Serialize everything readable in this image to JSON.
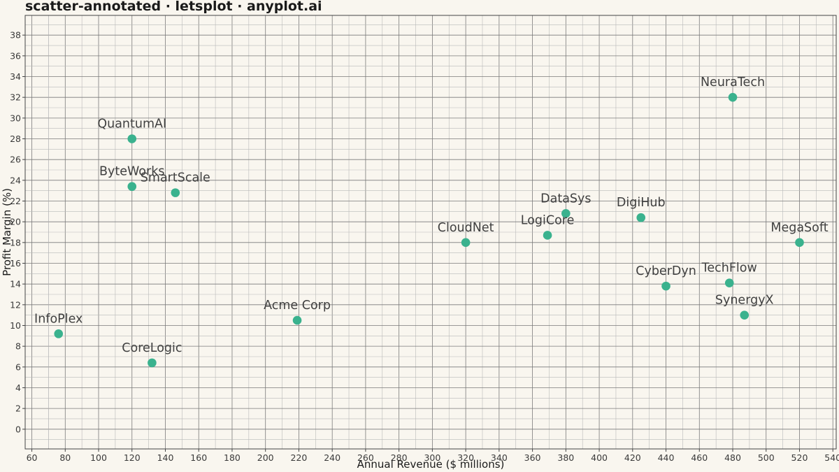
{
  "chart_data": {
    "type": "scatter",
    "title": "scatter-annotated · letsplot · anyplot.ai",
    "xlabel": "Annual Revenue ($ millions)",
    "ylabel": "Profit Margin (%)",
    "xlim": [
      56,
      542
    ],
    "ylim": [
      -1.9,
      39.9
    ],
    "xticks": [
      60,
      80,
      100,
      120,
      140,
      160,
      180,
      200,
      220,
      240,
      260,
      280,
      300,
      320,
      340,
      360,
      380,
      400,
      420,
      440,
      460,
      480,
      500,
      520,
      540
    ],
    "yticks": [
      0,
      2,
      4,
      6,
      8,
      10,
      12,
      14,
      16,
      18,
      20,
      22,
      24,
      26,
      28,
      30,
      32,
      34,
      36,
      38
    ],
    "grid": true,
    "point_color": "#3ab28e",
    "points": [
      {
        "label": "InfoPlex",
        "x": 76,
        "y": 9.2
      },
      {
        "label": "CoreLogic",
        "x": 132,
        "y": 6.4
      },
      {
        "label": "QuantumAI",
        "x": 120,
        "y": 28.0
      },
      {
        "label": "ByteWorks",
        "x": 120,
        "y": 23.4
      },
      {
        "label": "SmartScale",
        "x": 146,
        "y": 22.8
      },
      {
        "label": "Acme Corp",
        "x": 219,
        "y": 10.5
      },
      {
        "label": "CloudNet",
        "x": 320,
        "y": 18.0
      },
      {
        "label": "LogiCore",
        "x": 369,
        "y": 18.7
      },
      {
        "label": "DataSys",
        "x": 380,
        "y": 20.8
      },
      {
        "label": "DigiHub",
        "x": 425,
        "y": 20.4
      },
      {
        "label": "CyberDyn",
        "x": 440,
        "y": 13.8
      },
      {
        "label": "NeuraTech",
        "x": 480,
        "y": 32.0
      },
      {
        "label": "TechFlow",
        "x": 478,
        "y": 14.1
      },
      {
        "label": "SynergyX",
        "x": 487,
        "y": 11.0
      },
      {
        "label": "MegaSoft",
        "x": 520,
        "y": 18.0
      }
    ]
  }
}
